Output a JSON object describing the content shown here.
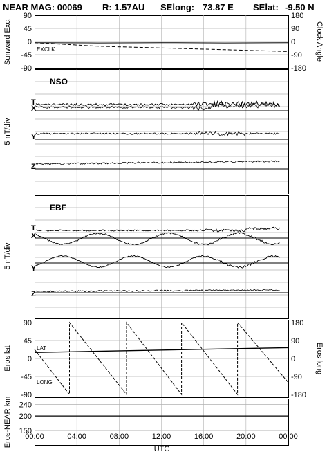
{
  "header": {
    "title": "NEAR MAG: 00069",
    "distance": "R: 1.57AU",
    "selong_label": "SElong:",
    "selong_value": "73.87 E",
    "selat_label": "SElat:",
    "selat_value": "-9.50 N"
  },
  "colors": {
    "ink": "#000000",
    "grid": "#b0b0b0",
    "background": "#ffffff"
  },
  "chart_data": [
    {
      "type": "line",
      "panel": "top-angles",
      "ylabel_left": "Sunward Exc.",
      "ylabel_right": "Clock Angle",
      "left_ticks": [
        "90",
        "45",
        "0",
        "-45",
        "-90"
      ],
      "right_ticks": [
        "180",
        "90",
        "0",
        "-90",
        "-180"
      ],
      "ylim_left": [
        -90,
        90
      ],
      "ylim_right": [
        -180,
        180
      ],
      "series_labels": [
        "EX",
        "CLK"
      ],
      "series": [
        {
          "name": "EX",
          "style": "solid",
          "x": [
            0,
            6,
            12,
            18,
            24
          ],
          "values": [
            -4,
            -5,
            -4,
            -5,
            -4
          ]
        },
        {
          "name": "CLK",
          "style": "dashed",
          "x": [
            0,
            6,
            12,
            18,
            24
          ],
          "values": [
            -4,
            -16,
            -22,
            -28,
            -34
          ]
        }
      ]
    },
    {
      "type": "line",
      "panel": "NSO",
      "title": "NSO",
      "ylabel": "5 nT/div",
      "trace_labels": [
        "T",
        "X",
        "Y",
        "Z"
      ]
    },
    {
      "type": "line",
      "panel": "EBF",
      "title": "EBF",
      "ylabel": "5 nT/div",
      "trace_labels": [
        "T",
        "X",
        "Y",
        "Z"
      ]
    },
    {
      "type": "line",
      "panel": "eros-position",
      "ylabel_left": "Eros lat",
      "ylabel_right": "Eros long",
      "left_ticks": [
        "90",
        "45",
        "0",
        "-45",
        "-90"
      ],
      "right_ticks": [
        "180",
        "90",
        "0",
        "-90",
        "-180"
      ],
      "ylim_left": [
        -90,
        90
      ],
      "ylim_right": [
        -180,
        180
      ],
      "series_labels": [
        "LAT",
        "LONG"
      ],
      "series": [
        {
          "name": "LAT",
          "x": [
            0,
            24
          ],
          "values": [
            15,
            27
          ]
        },
        {
          "name": "LONG",
          "style": "dashed",
          "x": [
            0,
            3.3,
            3.3,
            8.7,
            8.7,
            13.9,
            13.9,
            19.2,
            19.2,
            24
          ],
          "values": [
            45,
            -180,
            180,
            -180,
            180,
            -180,
            180,
            -180,
            180,
            -120
          ]
        }
      ]
    },
    {
      "type": "line",
      "panel": "range",
      "ylabel": "Eros-NEAR km",
      "left_ticks": [
        "240",
        "200",
        "150"
      ],
      "ylim": [
        100,
        260
      ],
      "series": [
        {
          "x": [
            0,
            24
          ],
          "values": [
            200,
            200
          ]
        }
      ]
    }
  ],
  "x_axis": {
    "ticks": [
      "00:00",
      "04:00",
      "08:00",
      "12:00",
      "16:00",
      "20:00",
      "00:00"
    ],
    "xlabel": "UTC"
  }
}
